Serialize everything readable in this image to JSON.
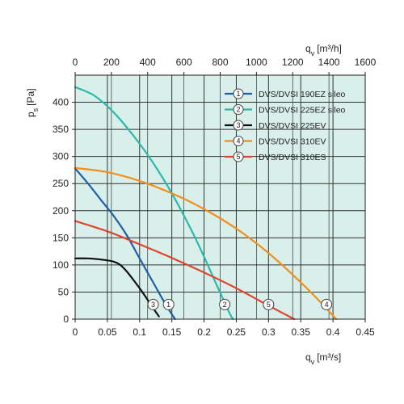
{
  "chart_data": {
    "type": "line",
    "xlabel": "q",
    "xlabel_sub": "v",
    "xlabel_unit": "[m³/s]",
    "ylabel": "p",
    "ylabel_sub": "s",
    "ylabel_unit": "[Pa]",
    "x2label": "q",
    "x2label_sub": "v",
    "x2label_unit": "[m³/h]",
    "xlim": [
      0,
      0.45
    ],
    "ylim": [
      0,
      450
    ],
    "x2lim": [
      0,
      1600
    ],
    "x_ticks": [
      "0",
      "0.05",
      "0.1",
      "0.15",
      "0.2",
      "0.25",
      "0.3",
      "0.35",
      "0.4",
      "0.45"
    ],
    "x_tick_values": [
      0,
      0.05,
      0.1,
      0.15,
      0.2,
      0.25,
      0.3,
      0.35,
      0.4,
      0.45
    ],
    "x2_ticks": [
      "0",
      "200",
      "400",
      "600",
      "800",
      "1000",
      "1200",
      "1400",
      "1600"
    ],
    "x2_tick_values": [
      0,
      200,
      400,
      600,
      800,
      1000,
      1200,
      1400,
      1600
    ],
    "y_ticks": [
      "0",
      "50",
      "100",
      "150",
      "200",
      "250",
      "300",
      "350",
      "400"
    ],
    "y_tick_values": [
      0,
      50,
      100,
      150,
      200,
      250,
      300,
      350,
      400
    ],
    "grid": true,
    "legend_position": "top-right",
    "background_color": "#d9efea",
    "series": [
      {
        "id": "1",
        "name": "DVS/DVSI 190EZ sileo",
        "color": "#1f5fa8",
        "x": [
          0,
          0.02,
          0.04,
          0.06,
          0.08,
          0.1,
          0.12,
          0.14,
          0.155
        ],
        "y": [
          278,
          250,
          220,
          190,
          155,
          112,
          70,
          28,
          0
        ],
        "label_at": [
          0.145,
          27
        ]
      },
      {
        "id": "2",
        "name": "DVS/DVSI 225EZ sileo",
        "color": "#2bb8ae",
        "x": [
          0,
          0.03,
          0.06,
          0.09,
          0.12,
          0.15,
          0.18,
          0.2,
          0.22,
          0.24,
          0.245
        ],
        "y": [
          428,
          412,
          381,
          339,
          290,
          232,
          165,
          115,
          62,
          10,
          0
        ],
        "label_at": [
          0.232,
          27
        ]
      },
      {
        "id": "3",
        "name": "DVS/DVSI 225EV",
        "color": "#111111",
        "x": [
          0,
          0.02,
          0.04,
          0.06,
          0.07,
          0.08,
          0.09,
          0.1,
          0.11,
          0.12,
          0.13
        ],
        "y": [
          112,
          112,
          110,
          106,
          100,
          88,
          73,
          57,
          40,
          22,
          5
        ],
        "label_at": [
          0.121,
          27
        ]
      },
      {
        "id": "4",
        "name": "DVS/DVSI 310EV",
        "color": "#f28f1c",
        "x": [
          0,
          0.05,
          0.1,
          0.15,
          0.2,
          0.25,
          0.3,
          0.35,
          0.38,
          0.405
        ],
        "y": [
          279,
          271,
          255,
          232,
          203,
          167,
          122,
          68,
          32,
          0
        ],
        "label_at": [
          0.39,
          27
        ]
      },
      {
        "id": "5",
        "name": "DVS/DVSI 310ES",
        "color": "#e0432e",
        "x": [
          0,
          0.05,
          0.1,
          0.15,
          0.2,
          0.25,
          0.3,
          0.34
        ],
        "y": [
          181,
          162,
          138,
          113,
          86,
          57,
          25,
          0
        ],
        "label_at": [
          0.3,
          27
        ]
      }
    ]
  }
}
